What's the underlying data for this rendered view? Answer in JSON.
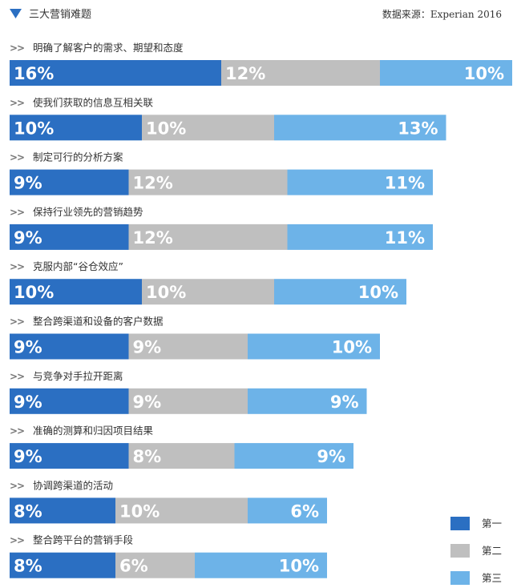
{
  "header": {
    "title": "三大营销难题",
    "source": "数据来源：Experian 2016"
  },
  "chart_data": {
    "type": "bar",
    "stacked": true,
    "orientation": "horizontal",
    "categories": [
      "明确了解客户的需求、期望和态度",
      "使我们获取的信息互相关联",
      "制定可行的分析方案",
      "保持行业领先的营销趋势",
      "克服内部“谷仓效应”",
      "整合跨渠道和设备的客户数据",
      "与竞争对手拉开距离",
      "准确的测算和归因项目结果",
      "协调跨渠道的活动",
      "整合跨平台的营销手段"
    ],
    "series": [
      {
        "name": "第一",
        "color": "#2b6fc2",
        "values": [
          16,
          10,
          9,
          9,
          10,
          9,
          9,
          9,
          8,
          8
        ]
      },
      {
        "name": "第二",
        "color": "#bfbfbf",
        "values": [
          12,
          10,
          12,
          12,
          10,
          9,
          9,
          8,
          10,
          6
        ]
      },
      {
        "name": "第三",
        "color": "#6db3e8",
        "values": [
          10,
          13,
          11,
          11,
          10,
          10,
          9,
          9,
          6,
          10
        ]
      }
    ],
    "value_suffix": "%",
    "legend_position": "bottom-right",
    "grid": false,
    "marker_color": "#2b6fc2"
  }
}
